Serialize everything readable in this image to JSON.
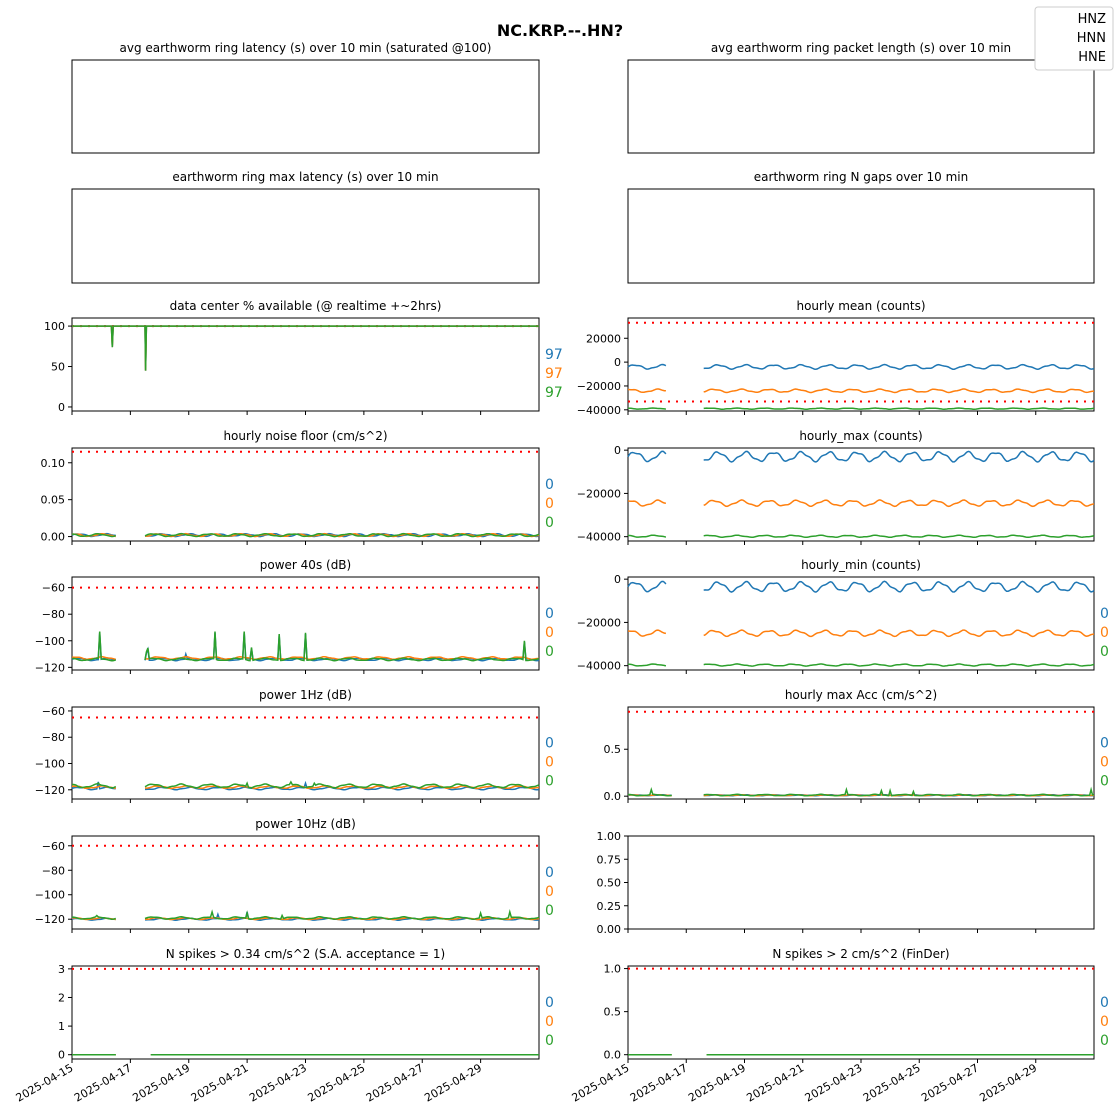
{
  "figure": {
    "title": "NC.KRP.--.HN?",
    "legend": {
      "placement": "top-right",
      "entries": [
        "HNZ",
        "HNN",
        "HNE"
      ]
    },
    "colors": {
      "HNZ": "#1f77b4",
      "HNN": "#ff7f0e",
      "HNE": "#2ca02c",
      "threshold": "#ff0000"
    },
    "date_ticks": [
      "2025-04-15",
      "2025-04-17",
      "2025-04-19",
      "2025-04-21",
      "2025-04-23",
      "2025-04-25",
      "2025-04-27",
      "2025-04-29"
    ],
    "x_range": [
      "2025-04-15",
      "2025-05-01"
    ]
  },
  "chart_data": [
    {
      "id": "p0",
      "type": "line",
      "title": "avg earthworm ring latency (s)   over 10 min (saturated @100)",
      "empty": true,
      "series": []
    },
    {
      "id": "p1",
      "type": "line",
      "title": "avg earthworm ring packet length (s)   over 10 min",
      "empty": true,
      "series": []
    },
    {
      "id": "p2",
      "type": "line",
      "title": "earthworm ring max latency (s)   over 10 min",
      "empty": true,
      "series": []
    },
    {
      "id": "p3",
      "type": "line",
      "title": "earthworm ring N gaps   over 10 min",
      "empty": true,
      "series": []
    },
    {
      "id": "p4",
      "type": "line",
      "title": "data center % available (@ realtime +~2hrs)",
      "ylim": [
        -5,
        110
      ],
      "yticks": [
        "0",
        "50",
        "100"
      ],
      "yvals": [
        0,
        50,
        100
      ],
      "threshold": 100,
      "side_values": [
        "97",
        "97",
        "97"
      ],
      "series": [
        {
          "name": "HNZ",
          "points": [
            [
              0,
              100
            ],
            [
              1.35,
              100
            ],
            [
              1.38,
              74
            ],
            [
              1.41,
              100
            ],
            [
              2.5,
              100
            ],
            [
              2.52,
              45
            ],
            [
              2.55,
              100
            ],
            [
              16,
              100
            ]
          ],
          "gaps": []
        },
        {
          "name": "HNN",
          "points": [
            [
              0,
              100
            ],
            [
              1.35,
              100
            ],
            [
              1.38,
              74
            ],
            [
              1.41,
              100
            ],
            [
              2.5,
              100
            ],
            [
              2.52,
              45
            ],
            [
              2.55,
              100
            ],
            [
              16,
              100
            ]
          ],
          "gaps": []
        },
        {
          "name": "HNE",
          "points": [
            [
              0,
              100
            ],
            [
              1.35,
              100
            ],
            [
              1.38,
              74
            ],
            [
              1.41,
              100
            ],
            [
              2.5,
              100
            ],
            [
              2.52,
              45
            ],
            [
              2.55,
              100
            ],
            [
              16,
              100
            ]
          ],
          "gaps": []
        }
      ]
    },
    {
      "id": "p5",
      "type": "line",
      "title": "hourly mean (counts)",
      "ylim": [
        -41000,
        37000
      ],
      "yticks": [
        "20000",
        "0",
        "−20000",
        "−40000"
      ],
      "yvals": [
        20000,
        0,
        -20000,
        -40000
      ],
      "threshold_band": [
        33000,
        -33000
      ],
      "series": [
        {
          "name": "HNZ",
          "base": -4000,
          "amp": 2000,
          "gaps": [
            [
              1.3,
              2.6
            ]
          ]
        },
        {
          "name": "HNN",
          "base": -24000,
          "amp": 1500,
          "gaps": [
            [
              1.3,
              2.6
            ]
          ]
        },
        {
          "name": "HNE",
          "base": -39000,
          "amp": 500,
          "gaps": [
            [
              1.3,
              2.6
            ]
          ]
        }
      ]
    },
    {
      "id": "p6",
      "type": "line",
      "title": "hourly noise floor (cm/s^2)",
      "ylim": [
        -0.006,
        0.12
      ],
      "yticks": [
        "0.00",
        "0.05",
        "0.10"
      ],
      "yvals": [
        0,
        0.05,
        0.1
      ],
      "threshold": 0.115,
      "side_values": [
        "0",
        "0",
        "0"
      ],
      "series": [
        {
          "name": "HNZ",
          "base": 0.002,
          "amp": 0.002,
          "gaps": [
            [
              1.5,
              2.5
            ]
          ]
        },
        {
          "name": "HNN",
          "base": 0.002,
          "amp": 0.002,
          "gaps": [
            [
              1.5,
              2.5
            ]
          ]
        },
        {
          "name": "HNE",
          "base": 0.002,
          "amp": 0.002,
          "gaps": [
            [
              1.5,
              2.5
            ]
          ]
        }
      ]
    },
    {
      "id": "p7",
      "type": "line",
      "title": "hourly_max (counts)",
      "ylim": [
        -42000,
        1000
      ],
      "yticks": [
        "0",
        "−20000",
        "−40000"
      ],
      "yvals": [
        0,
        -20000,
        -40000
      ],
      "series": [
        {
          "name": "HNZ",
          "base": -3000,
          "amp": 2500,
          "gaps": [
            [
              1.3,
              2.6
            ]
          ]
        },
        {
          "name": "HNN",
          "base": -24500,
          "amp": 1500,
          "gaps": [
            [
              1.3,
              2.6
            ]
          ]
        },
        {
          "name": "HNE",
          "base": -39800,
          "amp": 500,
          "gaps": [
            [
              1.3,
              2.6
            ]
          ]
        }
      ]
    },
    {
      "id": "p8",
      "type": "line",
      "title": "power 40s (dB)",
      "ylim": [
        -122,
        -52
      ],
      "yticks": [
        "−60",
        "−80",
        "−100",
        "−120"
      ],
      "yvals": [
        -60,
        -80,
        -100,
        -120
      ],
      "threshold": -60,
      "side_values": [
        "0",
        "0",
        "0"
      ],
      "series": [
        {
          "name": "HNZ",
          "base": -114,
          "amp": 1,
          "gaps": [
            [
              1.5,
              2.5
            ]
          ],
          "spikes": [
            [
              0.95,
              -94
            ],
            [
              2.58,
              -101
            ],
            [
              3.9,
              -110
            ],
            [
              4.9,
              -94
            ],
            [
              5.9,
              -94
            ],
            [
              6.15,
              -106
            ],
            [
              7.1,
              -96
            ],
            [
              8.0,
              -95
            ],
            [
              15.5,
              -101
            ]
          ]
        },
        {
          "name": "HNN",
          "base": -113,
          "amp": 1,
          "gaps": [
            [
              1.5,
              2.5
            ]
          ],
          "spikes": []
        },
        {
          "name": "HNE",
          "base": -114,
          "amp": 1,
          "gaps": [
            [
              1.5,
              2.5
            ]
          ],
          "spikes": [
            [
              0.95,
              -93
            ],
            [
              2.58,
              -100
            ],
            [
              4.9,
              -93
            ],
            [
              5.9,
              -93
            ],
            [
              6.15,
              -105
            ],
            [
              7.1,
              -95
            ],
            [
              8.0,
              -94
            ],
            [
              15.5,
              -100
            ]
          ]
        }
      ]
    },
    {
      "id": "p9",
      "type": "line",
      "title": "hourly_min (counts)",
      "ylim": [
        -42000,
        1000
      ],
      "yticks": [
        "0",
        "−20000",
        "−40000"
      ],
      "yvals": [
        0,
        -20000,
        -40000
      ],
      "side_values": [
        "0",
        "0",
        "0"
      ],
      "series": [
        {
          "name": "HNZ",
          "base": -3500,
          "amp": 2500,
          "gaps": [
            [
              1.3,
              2.6
            ]
          ]
        },
        {
          "name": "HNN",
          "base": -25000,
          "amp": 1500,
          "gaps": [
            [
              1.3,
              2.6
            ]
          ]
        },
        {
          "name": "HNE",
          "base": -39700,
          "amp": 500,
          "gaps": [
            [
              1.3,
              2.6
            ]
          ]
        }
      ]
    },
    {
      "id": "p10",
      "type": "line",
      "title": "power 1Hz (dB)",
      "ylim": [
        -127,
        -57
      ],
      "yticks": [
        "−60",
        "−80",
        "−100",
        "−120"
      ],
      "yvals": [
        -60,
        -80,
        -100,
        -120
      ],
      "threshold": -65,
      "side_values": [
        "0",
        "0",
        "0"
      ],
      "series": [
        {
          "name": "HNZ",
          "base": -119,
          "amp": 1,
          "gaps": [
            [
              1.5,
              2.5
            ]
          ],
          "spikes": [
            [
              0.9,
              -114
            ],
            [
              8.0,
              -115
            ]
          ]
        },
        {
          "name": "HNN",
          "base": -118,
          "amp": 1,
          "gaps": [
            [
              1.5,
              2.5
            ]
          ],
          "spikes": []
        },
        {
          "name": "HNE",
          "base": -117,
          "amp": 1.5,
          "gaps": [
            [
              1.5,
              2.5
            ]
          ],
          "spikes": [
            [
              0.9,
              -115
            ],
            [
              6.0,
              -115
            ],
            [
              7.5,
              -114
            ],
            [
              8.3,
              -115
            ]
          ]
        }
      ]
    },
    {
      "id": "p11",
      "type": "line",
      "title": "hourly max Acc (cm/s^2)",
      "ylim": [
        -0.03,
        0.95
      ],
      "yticks": [
        "0.0",
        "0.5"
      ],
      "yvals": [
        0,
        0.5
      ],
      "threshold": 0.9,
      "side_values": [
        "0",
        "0",
        "0"
      ],
      "series": [
        {
          "name": "HNZ",
          "base": 0.01,
          "amp": 0.005,
          "gaps": [
            [
              1.5,
              2.6
            ]
          ]
        },
        {
          "name": "HNN",
          "base": 0.01,
          "amp": 0.005,
          "gaps": [
            [
              1.5,
              2.6
            ]
          ]
        },
        {
          "name": "HNE",
          "base": 0.012,
          "amp": 0.008,
          "gaps": [
            [
              1.5,
              2.6
            ]
          ],
          "spikes": [
            [
              0.8,
              0.07
            ],
            [
              7.5,
              0.07
            ],
            [
              8.7,
              0.06
            ],
            [
              9.0,
              0.06
            ],
            [
              9.8,
              0.05
            ],
            [
              15.9,
              0.07
            ]
          ]
        }
      ]
    },
    {
      "id": "p12",
      "type": "line",
      "title": "power 10Hz (dB)",
      "ylim": [
        -128,
        -52
      ],
      "yticks": [
        "−60",
        "−80",
        "−100",
        "−120"
      ],
      "yvals": [
        -60,
        -80,
        -100,
        -120
      ],
      "threshold": -60,
      "side_values": [
        "0",
        "0",
        "0"
      ],
      "series": [
        {
          "name": "HNZ",
          "base": -120,
          "amp": 0.8,
          "gaps": [
            [
              1.5,
              2.5
            ]
          ],
          "spikes": [
            [
              5.0,
              -116
            ],
            [
              6.0,
              -114
            ]
          ]
        },
        {
          "name": "HNN",
          "base": -119.5,
          "amp": 0.8,
          "gaps": [
            [
              1.5,
              2.5
            ]
          ],
          "spikes": []
        },
        {
          "name": "HNE",
          "base": -119,
          "amp": 1,
          "gaps": [
            [
              1.5,
              2.5
            ]
          ],
          "spikes": [
            [
              0.85,
              -117
            ],
            [
              4.8,
              -114
            ],
            [
              6.0,
              -115
            ],
            [
              7.2,
              -117
            ],
            [
              14.0,
              -115
            ],
            [
              15.0,
              -114
            ]
          ]
        }
      ]
    },
    {
      "id": "p13",
      "type": "line",
      "title": "",
      "ylim": [
        0,
        1
      ],
      "yticks": [
        "0.00",
        "0.25",
        "0.50",
        "0.75",
        "1.00"
      ],
      "yvals": [
        0,
        0.25,
        0.5,
        0.75,
        1
      ],
      "series": []
    },
    {
      "id": "p14",
      "type": "line",
      "title": "N spikes > 0.34 cm/s^2 (S.A. acceptance = 1)",
      "ylim": [
        -0.15,
        3.1
      ],
      "yticks": [
        "0",
        "1",
        "2",
        "3"
      ],
      "yvals": [
        0,
        1,
        2,
        3
      ],
      "threshold": 3,
      "side_values": [
        "0",
        "0",
        "0"
      ],
      "series": [
        {
          "name": "HNZ",
          "base": 0,
          "amp": 0,
          "gaps": [
            [
              1.5,
              2.7
            ]
          ]
        },
        {
          "name": "HNN",
          "base": 0,
          "amp": 0,
          "gaps": [
            [
              1.5,
              2.7
            ]
          ]
        },
        {
          "name": "HNE",
          "base": 0,
          "amp": 0,
          "gaps": [
            [
              1.5,
              2.7
            ]
          ]
        }
      ]
    },
    {
      "id": "p15",
      "type": "line",
      "title": "N spikes > 2 cm/s^2 (FinDer)",
      "ylim": [
        -0.05,
        1.03
      ],
      "yticks": [
        "0.0",
        "0.5",
        "1.0"
      ],
      "yvals": [
        0,
        0.5,
        1
      ],
      "threshold": 1,
      "side_values": [
        "0",
        "0",
        "0"
      ],
      "series": [
        {
          "name": "HNZ",
          "base": 0,
          "amp": 0,
          "gaps": [
            [
              1.5,
              2.7
            ]
          ]
        },
        {
          "name": "HNN",
          "base": 0,
          "amp": 0,
          "gaps": [
            [
              1.5,
              2.7
            ]
          ]
        },
        {
          "name": "HNE",
          "base": 0,
          "amp": 0,
          "gaps": [
            [
              1.5,
              2.7
            ]
          ]
        }
      ]
    }
  ]
}
